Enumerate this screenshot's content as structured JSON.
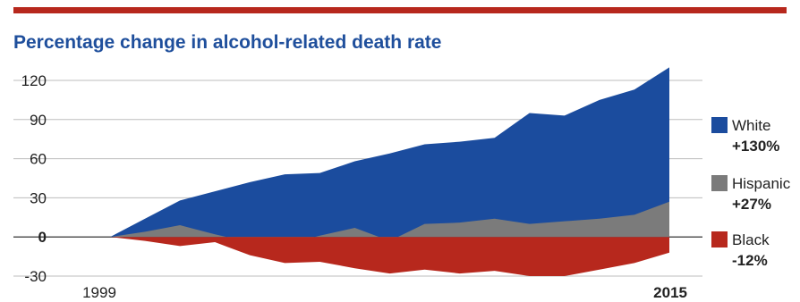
{
  "chart_data": {
    "type": "area",
    "title": "Percentage change in alcohol-related death rate",
    "xlabel": "",
    "ylabel": "",
    "x": [
      1999,
      2000,
      2001,
      2002,
      2003,
      2004,
      2005,
      2006,
      2007,
      2008,
      2009,
      2010,
      2011,
      2012,
      2013,
      2014,
      2015
    ],
    "x_tick_labels": [
      "1999",
      "2015"
    ],
    "y_ticks": [
      120,
      90,
      60,
      30,
      0,
      -30
    ],
    "ylim": [
      -33,
      133
    ],
    "grid": true,
    "legend_position": "right",
    "series": [
      {
        "name": "White",
        "change_label": "+130%",
        "color": "#1b4c9e",
        "values": [
          0,
          14,
          28,
          35,
          42,
          48,
          49,
          58,
          64,
          71,
          73,
          76,
          95,
          93,
          105,
          113,
          130
        ]
      },
      {
        "name": "Hispanic",
        "change_label": "+27%",
        "color": "#7b7b7b",
        "values": [
          0,
          4,
          9,
          2,
          -4,
          -6,
          1,
          7,
          -3,
          10,
          11,
          14,
          10,
          12,
          14,
          17,
          27
        ]
      },
      {
        "name": "Black",
        "change_label": "-12%",
        "color": "#b7281d",
        "values": [
          0,
          -3,
          -7,
          -4,
          -14,
          -20,
          -19,
          -24,
          -28,
          -25,
          -28,
          -26,
          -30,
          -30,
          -25,
          -20,
          -12
        ]
      }
    ]
  }
}
